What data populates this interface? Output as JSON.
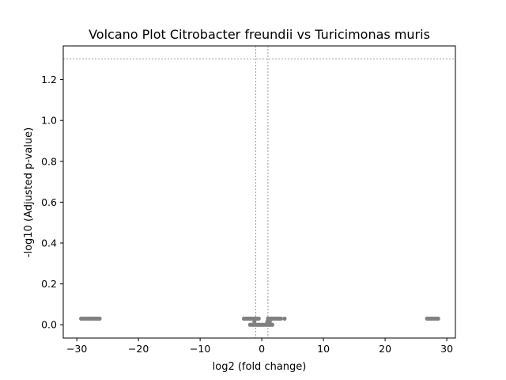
{
  "chart_data": {
    "type": "scatter",
    "title": "Volcano Plot Citrobacter freundii vs Turicimonas muris",
    "xlabel": "log2 (fold change)",
    "ylabel": "-log10 (Adjusted p-value)",
    "xlim": [
      -32.2,
      31.4
    ],
    "ylim": [
      -0.065,
      1.365
    ],
    "x_ticks": [
      -30,
      -20,
      -10,
      0,
      10,
      20,
      30
    ],
    "x_tick_labels": [
      "−30",
      "−20",
      "−10",
      "0",
      "10",
      "20",
      "30"
    ],
    "y_ticks": [
      0.0,
      0.2,
      0.4,
      0.6,
      0.8,
      1.0,
      1.2
    ],
    "y_tick_labels": [
      "0.0",
      "0.2",
      "0.4",
      "0.6",
      "0.8",
      "1.0",
      "1.2"
    ],
    "grid": false,
    "point_color": "#808080",
    "threshold_color": "#808080",
    "threshold_lines": {
      "y": 1.301,
      "x": [
        -1,
        1
      ]
    },
    "series": [
      {
        "values": [
          {
            "x": -29.3,
            "y": 0.03
          },
          {
            "x": -29.0,
            "y": 0.03
          },
          {
            "x": -28.7,
            "y": 0.03
          },
          {
            "x": -28.4,
            "y": 0.03
          },
          {
            "x": -28.1,
            "y": 0.03
          },
          {
            "x": -27.8,
            "y": 0.03
          },
          {
            "x": -27.5,
            "y": 0.03
          },
          {
            "x": -27.2,
            "y": 0.03
          },
          {
            "x": -26.9,
            "y": 0.03
          },
          {
            "x": -26.6,
            "y": 0.03
          },
          {
            "x": -26.3,
            "y": 0.03
          },
          {
            "x": -2.9,
            "y": 0.03
          },
          {
            "x": -2.6,
            "y": 0.03
          },
          {
            "x": -2.3,
            "y": 0.03
          },
          {
            "x": -2.0,
            "y": 0.03
          },
          {
            "x": -1.7,
            "y": 0.03
          },
          {
            "x": -1.4,
            "y": 0.03
          },
          {
            "x": -1.1,
            "y": 0.03
          },
          {
            "x": -0.8,
            "y": 0.03
          },
          {
            "x": -0.5,
            "y": 0.03
          },
          {
            "x": -1.9,
            "y": 0.0
          },
          {
            "x": -1.6,
            "y": 0.0
          },
          {
            "x": -1.3,
            "y": 0.0
          },
          {
            "x": -1.0,
            "y": 0.0
          },
          {
            "x": -0.7,
            "y": 0.0
          },
          {
            "x": -0.4,
            "y": 0.0
          },
          {
            "x": -0.1,
            "y": 0.0
          },
          {
            "x": 0.2,
            "y": 0.0
          },
          {
            "x": 0.5,
            "y": 0.0
          },
          {
            "x": 0.8,
            "y": 0.0
          },
          {
            "x": 1.1,
            "y": 0.0
          },
          {
            "x": 1.4,
            "y": 0.0
          },
          {
            "x": 1.7,
            "y": 0.0
          },
          {
            "x": -1.2,
            "y": 0.015
          },
          {
            "x": 0.9,
            "y": 0.015
          },
          {
            "x": 1.3,
            "y": 0.015
          },
          {
            "x": 1.0,
            "y": 0.03
          },
          {
            "x": 1.3,
            "y": 0.03
          },
          {
            "x": 1.6,
            "y": 0.03
          },
          {
            "x": 1.9,
            "y": 0.03
          },
          {
            "x": 2.2,
            "y": 0.03
          },
          {
            "x": 2.5,
            "y": 0.03
          },
          {
            "x": 2.8,
            "y": 0.03
          },
          {
            "x": 3.1,
            "y": 0.03
          },
          {
            "x": 3.7,
            "y": 0.03
          },
          {
            "x": 26.8,
            "y": 0.03
          },
          {
            "x": 27.1,
            "y": 0.03
          },
          {
            "x": 27.4,
            "y": 0.03
          },
          {
            "x": 27.7,
            "y": 0.03
          },
          {
            "x": 28.0,
            "y": 0.03
          },
          {
            "x": 28.3,
            "y": 0.03
          },
          {
            "x": 28.6,
            "y": 0.03
          }
        ]
      }
    ]
  }
}
